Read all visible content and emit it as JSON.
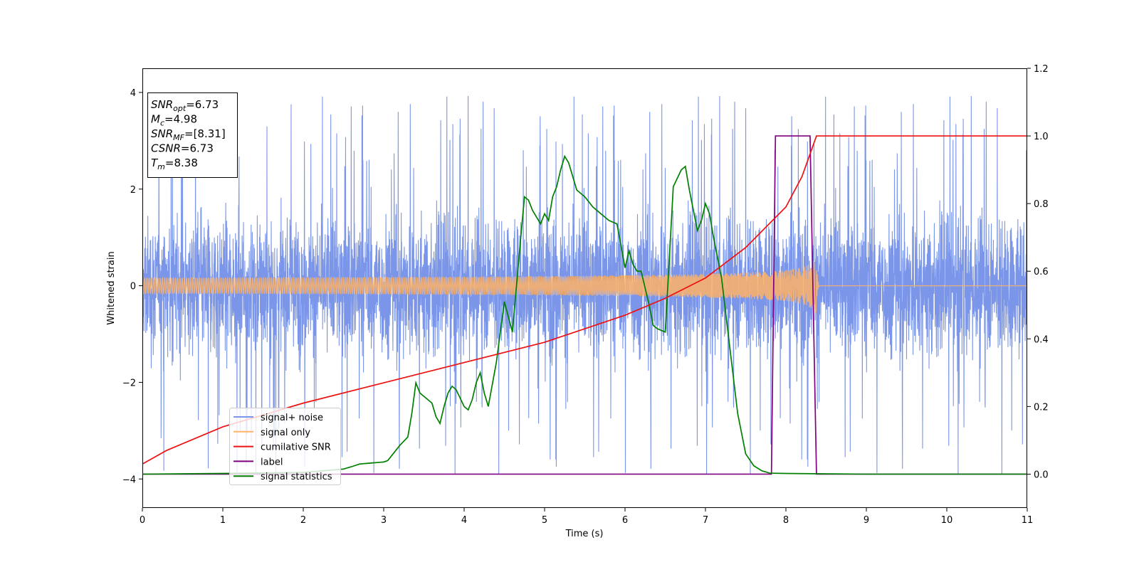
{
  "chart_data": {
    "type": "line",
    "xlabel": "Time (s)",
    "ylabel": "Whitened strain",
    "xlim": [
      0,
      11
    ],
    "ylim": [
      -4.6,
      4.5
    ],
    "y2lim": [
      -0.1,
      1.2
    ],
    "xticks": [
      "0",
      "1",
      "2",
      "3",
      "4",
      "5",
      "6",
      "7",
      "8",
      "9",
      "10",
      "11"
    ],
    "yticks": [
      "−4",
      "−2",
      "0",
      "2",
      "4"
    ],
    "y2ticks": [
      "0.0",
      "0.2",
      "0.4",
      "0.6",
      "0.8",
      "1.0",
      "1.2"
    ],
    "grid": false,
    "legend_placement": "lower-left",
    "info_box": [
      {
        "base": "SNR",
        "sub": "opt",
        "rest": "=6.73"
      },
      {
        "base": "M",
        "sub": "c",
        "rest": "=4.98"
      },
      {
        "base": "SNR",
        "sub": "MF",
        "rest": "=[8.31]"
      },
      {
        "base": "CSNR",
        "sub": "",
        "rest": "=6.73"
      },
      {
        "base": "T",
        "sub": "m",
        "rest": "=8.38"
      }
    ],
    "series": [
      {
        "name": "signal+ noise",
        "axis": "left",
        "color": "#7b96e8",
        "description": "noisy whitened strain, spread about ±1.8 with spikes to ±4"
      },
      {
        "name": "signal only",
        "axis": "left",
        "color": "#ffb366",
        "merger_time": 8.38,
        "peak_amplitude": 0.65
      },
      {
        "name": "cumilative SNR",
        "axis": "right",
        "color": "#ee1111",
        "x": [
          0,
          0.3,
          1,
          2,
          3,
          4,
          5,
          6,
          6.5,
          7,
          7.5,
          8,
          8.2,
          8.38,
          11
        ],
        "y": [
          0.03,
          0.07,
          0.14,
          0.21,
          0.27,
          0.33,
          0.39,
          0.47,
          0.52,
          0.58,
          0.67,
          0.79,
          0.88,
          1.0,
          1.0
        ]
      },
      {
        "name": "label",
        "axis": "right",
        "color": "#800080",
        "x": [
          0,
          7.82,
          7.87,
          8.3,
          8.38,
          11
        ],
        "y": [
          0,
          0,
          1.0,
          1.0,
          0,
          0
        ]
      },
      {
        "name": "signal statistics",
        "axis": "right",
        "color": "#008000",
        "x": [
          0,
          1,
          2,
          2.5,
          2.6,
          2.7,
          2.8,
          2.85,
          2.9,
          2.95,
          3.0,
          3.05,
          3.1,
          3.2,
          3.3,
          3.35,
          3.4,
          3.45,
          3.5,
          3.6,
          3.65,
          3.7,
          3.75,
          3.8,
          3.85,
          3.9,
          4.0,
          4.05,
          4.1,
          4.15,
          4.2,
          4.25,
          4.3,
          4.4,
          4.5,
          4.6,
          4.7,
          4.75,
          4.8,
          4.85,
          4.9,
          4.95,
          5.0,
          5.05,
          5.1,
          5.15,
          5.2,
          5.25,
          5.3,
          5.35,
          5.4,
          5.5,
          5.6,
          5.7,
          5.8,
          5.9,
          6.0,
          6.05,
          6.1,
          6.15,
          6.2,
          6.3,
          6.35,
          6.4,
          6.5,
          6.6,
          6.7,
          6.75,
          6.8,
          6.9,
          6.95,
          7.0,
          7.05,
          7.1,
          7.2,
          7.3,
          7.4,
          7.5,
          7.6,
          7.7,
          7.8,
          8.0,
          9.0,
          10.0,
          11.0
        ],
        "y": [
          0.0,
          0.002,
          0.005,
          0.015,
          0.022,
          0.03,
          0.032,
          0.033,
          0.034,
          0.035,
          0.036,
          0.04,
          0.055,
          0.085,
          0.11,
          0.18,
          0.27,
          0.24,
          0.23,
          0.21,
          0.17,
          0.15,
          0.2,
          0.24,
          0.26,
          0.25,
          0.2,
          0.19,
          0.22,
          0.27,
          0.3,
          0.24,
          0.2,
          0.33,
          0.51,
          0.42,
          0.69,
          0.82,
          0.81,
          0.78,
          0.76,
          0.74,
          0.77,
          0.75,
          0.82,
          0.85,
          0.9,
          0.94,
          0.92,
          0.88,
          0.84,
          0.82,
          0.79,
          0.77,
          0.75,
          0.74,
          0.61,
          0.66,
          0.62,
          0.6,
          0.6,
          0.5,
          0.44,
          0.43,
          0.42,
          0.85,
          0.9,
          0.91,
          0.84,
          0.72,
          0.75,
          0.8,
          0.77,
          0.7,
          0.58,
          0.38,
          0.18,
          0.06,
          0.025,
          0.01,
          0.003,
          0.002,
          0.0,
          0.0,
          0.0
        ]
      }
    ]
  }
}
